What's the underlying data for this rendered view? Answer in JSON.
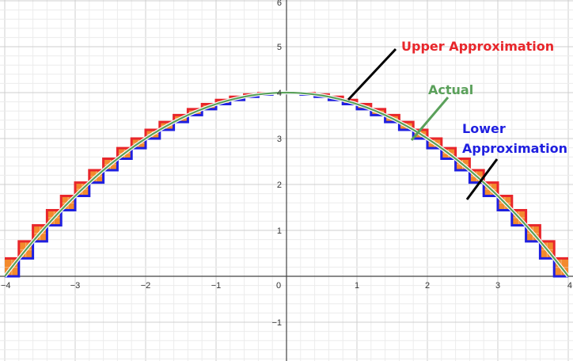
{
  "chart_data": {
    "type": "line",
    "title": "",
    "xlabel": "",
    "ylabel": "",
    "xlim": [
      -4,
      4
    ],
    "ylim": [
      -1.7,
      6
    ],
    "grid": true,
    "function": "y = 4 - x^2 / 4",
    "x_ticks": [
      "-4",
      "-3",
      "-2",
      "-1",
      "0",
      "1",
      "2",
      "3",
      "4"
    ],
    "y_ticks": [
      "-1",
      "1",
      "2",
      "3",
      "4",
      "5",
      "6"
    ],
    "step_width": 0.2,
    "step_count": 40,
    "x_start": -4,
    "series": [
      {
        "name": "Upper Approximation",
        "color": "#e8262b",
        "kind": "step-max"
      },
      {
        "name": "Actual",
        "color": "#5aa05a",
        "kind": "curve"
      },
      {
        "name": "Lower Approximation",
        "color": "#1f1fe0",
        "kind": "step-min"
      }
    ],
    "annotations": [
      {
        "text": "Upper Approximation",
        "color": "#e8262b"
      },
      {
        "text": "Actual",
        "color": "#5aa05a"
      },
      {
        "text": "Lower",
        "color": "#1f1fe0"
      },
      {
        "text": "Approximation",
        "color": "#1f1fe0"
      }
    ],
    "fill_color": "#f38a2c"
  }
}
